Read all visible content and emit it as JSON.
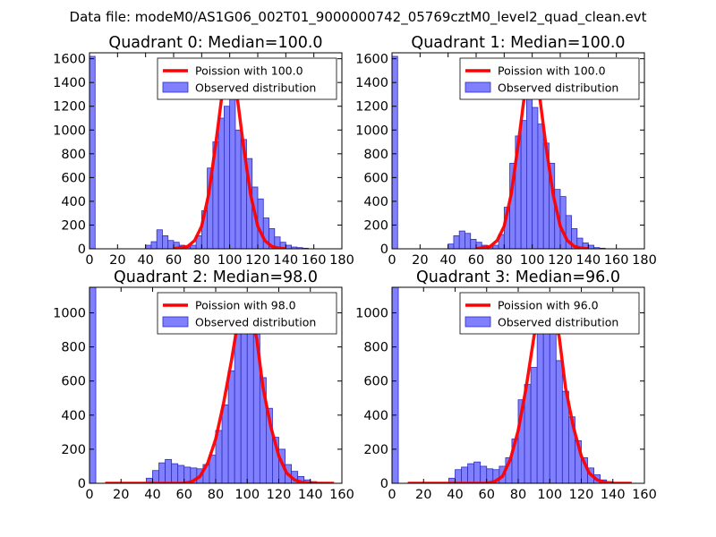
{
  "suptitle": "Data file: modeM0/AS1G06_002T01_9000000742_05769cztM0_level2_quad_clean.evt",
  "colors": {
    "bar_fill": "#8080ff",
    "bar_edge": "#2c2cbf",
    "curve": "#ff0000",
    "axis": "#000000"
  },
  "chart_data": [
    {
      "type": "bar",
      "title": "Quadrant 0: Median=100.0",
      "median": 100.0,
      "bin_width": 4,
      "xlim": [
        0,
        180
      ],
      "ylim": [
        0,
        1650
      ],
      "xticks": [
        "0",
        "20",
        "40",
        "60",
        "80",
        "100",
        "120",
        "140",
        "160",
        "180"
      ],
      "yticks": [
        "0",
        "200",
        "400",
        "600",
        "800",
        "1000",
        "1200",
        "1400",
        "1600"
      ],
      "legend": [
        "Poission with 100.0",
        "Observed distribution"
      ],
      "bins": [
        [
          0,
          1620
        ],
        [
          40,
          30
        ],
        [
          44,
          60
        ],
        [
          48,
          160
        ],
        [
          52,
          110
        ],
        [
          56,
          70
        ],
        [
          60,
          55
        ],
        [
          64,
          30
        ],
        [
          68,
          15
        ],
        [
          72,
          30
        ],
        [
          76,
          110
        ],
        [
          80,
          320
        ],
        [
          84,
          680
        ],
        [
          88,
          900
        ],
        [
          92,
          1100
        ],
        [
          96,
          1200
        ],
        [
          100,
          1450
        ],
        [
          104,
          1000
        ],
        [
          108,
          920
        ],
        [
          112,
          760
        ],
        [
          116,
          520
        ],
        [
          120,
          420
        ],
        [
          124,
          260
        ],
        [
          128,
          170
        ],
        [
          132,
          100
        ],
        [
          136,
          55
        ],
        [
          140,
          30
        ],
        [
          144,
          15
        ],
        [
          148,
          10
        ],
        [
          152,
          5
        ]
      ],
      "curve": [
        [
          60,
          0
        ],
        [
          70,
          20
        ],
        [
          75,
          70
        ],
        [
          80,
          190
        ],
        [
          85,
          460
        ],
        [
          90,
          880
        ],
        [
          95,
          1340
        ],
        [
          100,
          1560
        ],
        [
          105,
          1310
        ],
        [
          110,
          850
        ],
        [
          115,
          450
        ],
        [
          120,
          190
        ],
        [
          125,
          70
        ],
        [
          130,
          20
        ],
        [
          135,
          5
        ],
        [
          140,
          0
        ]
      ]
    },
    {
      "type": "bar",
      "title": "Quadrant 1: Median=100.0",
      "median": 100.0,
      "bin_width": 4,
      "xlim": [
        0,
        180
      ],
      "ylim": [
        0,
        1650
      ],
      "xticks": [
        "0",
        "20",
        "40",
        "60",
        "80",
        "100",
        "120",
        "140",
        "160",
        "180"
      ],
      "yticks": [
        "0",
        "200",
        "400",
        "600",
        "800",
        "1000",
        "1200",
        "1400",
        "1600"
      ],
      "legend": [
        "Poission with 100.0",
        "Observed distribution"
      ],
      "bins": [
        [
          0,
          1620
        ],
        [
          40,
          40
        ],
        [
          44,
          110
        ],
        [
          48,
          150
        ],
        [
          52,
          130
        ],
        [
          56,
          80
        ],
        [
          60,
          55
        ],
        [
          64,
          30
        ],
        [
          68,
          15
        ],
        [
          72,
          30
        ],
        [
          76,
          120
        ],
        [
          80,
          350
        ],
        [
          84,
          720
        ],
        [
          88,
          950
        ],
        [
          92,
          1080
        ],
        [
          96,
          1460
        ],
        [
          100,
          1190
        ],
        [
          104,
          1050
        ],
        [
          108,
          890
        ],
        [
          112,
          720
        ],
        [
          116,
          500
        ],
        [
          120,
          440
        ],
        [
          124,
          280
        ],
        [
          128,
          170
        ],
        [
          132,
          90
        ],
        [
          136,
          50
        ],
        [
          140,
          30
        ],
        [
          144,
          10
        ],
        [
          148,
          5
        ]
      ],
      "curve": [
        [
          60,
          0
        ],
        [
          70,
          20
        ],
        [
          75,
          70
        ],
        [
          80,
          190
        ],
        [
          85,
          460
        ],
        [
          90,
          880
        ],
        [
          95,
          1340
        ],
        [
          100,
          1540
        ],
        [
          105,
          1310
        ],
        [
          110,
          850
        ],
        [
          115,
          450
        ],
        [
          120,
          190
        ],
        [
          125,
          70
        ],
        [
          130,
          20
        ],
        [
          135,
          5
        ],
        [
          140,
          0
        ]
      ]
    },
    {
      "type": "bar",
      "title": "Quadrant 2: Median=98.0",
      "median": 98.0,
      "bin_width": 4,
      "xlim": [
        0,
        160
      ],
      "ylim": [
        0,
        1150
      ],
      "xticks": [
        "0",
        "20",
        "40",
        "60",
        "80",
        "100",
        "120",
        "140",
        "160"
      ],
      "yticks": [
        "0",
        "200",
        "400",
        "600",
        "800",
        "1000"
      ],
      "legend": [
        "Poission with 98.0",
        "Observed distribution"
      ],
      "bins": [
        [
          0,
          1150
        ],
        [
          36,
          30
        ],
        [
          40,
          75
        ],
        [
          44,
          120
        ],
        [
          48,
          140
        ],
        [
          52,
          115
        ],
        [
          56,
          105
        ],
        [
          60,
          95
        ],
        [
          64,
          90
        ],
        [
          68,
          85
        ],
        [
          72,
          110
        ],
        [
          76,
          165
        ],
        [
          80,
          310
        ],
        [
          84,
          460
        ],
        [
          88,
          660
        ],
        [
          92,
          900
        ],
        [
          96,
          1020
        ],
        [
          100,
          1030
        ],
        [
          104,
          880
        ],
        [
          108,
          620
        ],
        [
          112,
          440
        ],
        [
          116,
          270
        ],
        [
          120,
          200
        ],
        [
          124,
          110
        ],
        [
          128,
          70
        ],
        [
          132,
          40
        ],
        [
          136,
          20
        ],
        [
          140,
          10
        ],
        [
          144,
          5
        ]
      ],
      "curve": [
        [
          10,
          0
        ],
        [
          60,
          0
        ],
        [
          65,
          10
        ],
        [
          70,
          40
        ],
        [
          75,
          120
        ],
        [
          80,
          260
        ],
        [
          85,
          470
        ],
        [
          90,
          720
        ],
        [
          95,
          1000
        ],
        [
          98,
          1110
        ],
        [
          102,
          1000
        ],
        [
          106,
          850
        ],
        [
          110,
          560
        ],
        [
          115,
          330
        ],
        [
          120,
          160
        ],
        [
          125,
          60
        ],
        [
          130,
          20
        ],
        [
          135,
          5
        ],
        [
          140,
          0
        ],
        [
          155,
          0
        ]
      ]
    },
    {
      "type": "bar",
      "title": "Quadrant 3: Median=96.0",
      "median": 96.0,
      "bin_width": 4,
      "xlim": [
        0,
        160
      ],
      "ylim": [
        0,
        1150
      ],
      "xticks": [
        "0",
        "20",
        "40",
        "60",
        "80",
        "100",
        "120",
        "140",
        "160"
      ],
      "yticks": [
        "0",
        "200",
        "400",
        "600",
        "800",
        "1000"
      ],
      "legend": [
        "Poission with 96.0",
        "Observed distribution"
      ],
      "bins": [
        [
          0,
          1150
        ],
        [
          36,
          30
        ],
        [
          40,
          80
        ],
        [
          44,
          95
        ],
        [
          48,
          115
        ],
        [
          52,
          125
        ],
        [
          56,
          100
        ],
        [
          60,
          85
        ],
        [
          64,
          80
        ],
        [
          68,
          100
        ],
        [
          72,
          150
        ],
        [
          76,
          260
        ],
        [
          80,
          490
        ],
        [
          84,
          580
        ],
        [
          88,
          680
        ],
        [
          92,
          1050
        ],
        [
          96,
          1000
        ],
        [
          100,
          880
        ],
        [
          104,
          720
        ],
        [
          108,
          540
        ],
        [
          112,
          390
        ],
        [
          116,
          250
        ],
        [
          120,
          150
        ],
        [
          124,
          90
        ],
        [
          128,
          50
        ],
        [
          132,
          20
        ],
        [
          136,
          10
        ]
      ],
      "curve": [
        [
          10,
          0
        ],
        [
          60,
          0
        ],
        [
          65,
          10
        ],
        [
          70,
          40
        ],
        [
          75,
          140
        ],
        [
          80,
          310
        ],
        [
          85,
          560
        ],
        [
          90,
          860
        ],
        [
          94,
          1070
        ],
        [
          98,
          1110
        ],
        [
          102,
          1000
        ],
        [
          106,
          860
        ],
        [
          110,
          560
        ],
        [
          115,
          330
        ],
        [
          120,
          160
        ],
        [
          125,
          60
        ],
        [
          130,
          20
        ],
        [
          135,
          5
        ],
        [
          140,
          0
        ],
        [
          152,
          0
        ]
      ]
    }
  ]
}
